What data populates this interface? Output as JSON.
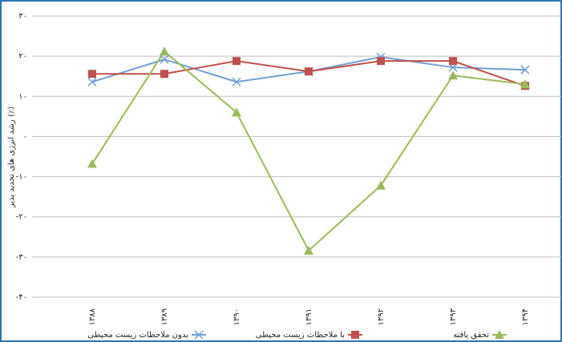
{
  "chart_data": {
    "type": "line",
    "y_label": "رشد انرژی های تجدید پذیر (٪)",
    "categories": [
      "۱۳۸۸",
      "۱۳۸۹",
      "۱۳۹۰",
      "۱۳۹۱",
      "۱۳۹۲",
      "۱۳۹۳",
      "۱۳۹۴"
    ],
    "series": [
      {
        "name": "بدون ملاحظات زیست محیطی",
        "color": "#6f9ed6",
        "marker": "x",
        "values": [
          13.6,
          19.2,
          13.6,
          16.2,
          19.8,
          17.2,
          16.6
        ]
      },
      {
        "name": "با ملاحظات زیست محیطی",
        "color": "#c0504d",
        "marker": "square",
        "values": [
          15.6,
          15.6,
          18.8,
          16.2,
          18.8,
          18.8,
          12.6
        ]
      },
      {
        "name": "تحقق یافته",
        "color": "#9bbb59",
        "marker": "triangle",
        "values": [
          -6.8,
          21.2,
          6,
          -28.4,
          -12.2,
          15.2,
          13
        ]
      }
    ],
    "ylim": [
      -40,
      30
    ],
    "yticks": [
      {
        "value": -40,
        "label": "-۴۰"
      },
      {
        "value": -30,
        "label": "-۳۰"
      },
      {
        "value": -20,
        "label": "-۲۰"
      },
      {
        "value": -10,
        "label": "-۱۰"
      },
      {
        "value": 0,
        "label": "۰"
      },
      {
        "value": 10,
        "label": "۱۰"
      },
      {
        "value": 20,
        "label": "۲۰"
      },
      {
        "value": 30,
        "label": "۳۰"
      }
    ],
    "grid": true
  }
}
